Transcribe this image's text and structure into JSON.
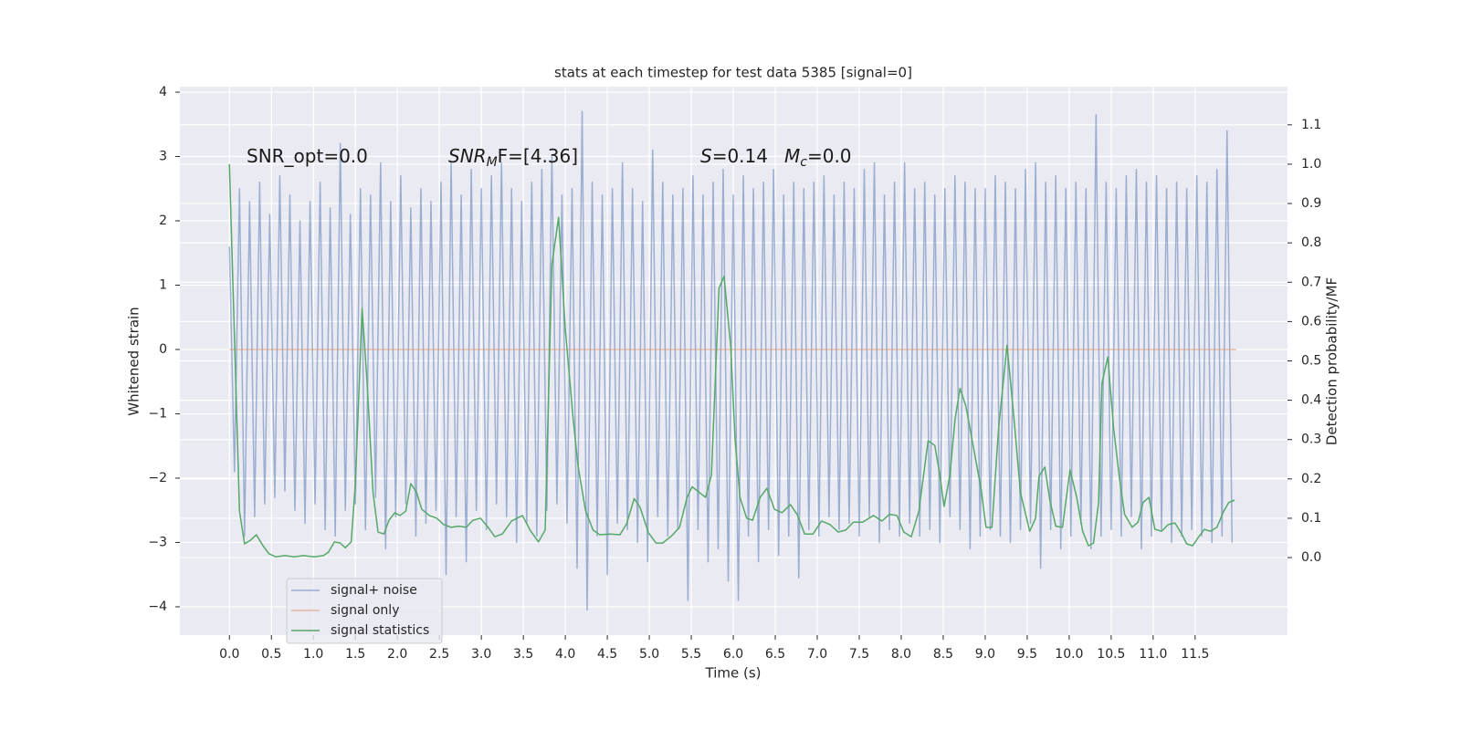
{
  "chart_data": {
    "type": "line",
    "title": "stats at each timestep for test data 5385 [signal=0]",
    "xlabel": "Time (s)",
    "ylabel": "Whitened strain",
    "y2label": "Detection probability/MF",
    "annotations": [
      {
        "text": "SNR_opt=0.0"
      },
      {
        "italic": "SNR",
        "sub": "M",
        "text": "F=[4.36]"
      },
      {
        "italic": "S",
        "text": "=0.14"
      },
      {
        "italic": "M",
        "sub": "c",
        "text": "=0.0"
      }
    ],
    "xlim": [
      -0.59,
      12.6
    ],
    "ylim": [
      -4.44,
      4.085
    ],
    "y2lim": [
      -0.197,
      1.197
    ],
    "xticks": [
      {
        "value": 0,
        "label": "0.0"
      },
      0.5,
      {
        "value": 1,
        "label": "1.0"
      },
      1.5,
      {
        "value": 2,
        "label": "2.0"
      },
      2.5,
      {
        "value": 3,
        "label": "3.0"
      },
      3.5,
      {
        "value": 4,
        "label": "4.0"
      },
      4.5,
      {
        "value": 5,
        "label": "5.0"
      },
      5.5,
      {
        "value": 6,
        "label": "6.0"
      },
      6.5,
      {
        "value": 7,
        "label": "7.0"
      },
      7.5,
      {
        "value": 8,
        "label": "8.0"
      },
      8.5,
      {
        "value": 9,
        "label": "9.0"
      },
      9.5,
      {
        "value": 10,
        "label": "10.0"
      },
      10.5,
      {
        "value": 11,
        "label": "11.0"
      },
      11.5
    ],
    "yticks": [
      {
        "value": -4,
        "label": "−4"
      },
      {
        "value": -3,
        "label": "−3"
      },
      {
        "value": -2,
        "label": "−2"
      },
      {
        "value": -1,
        "label": "−1"
      },
      0,
      1,
      2,
      3,
      4
    ],
    "y2ticks": [
      {
        "value": 0,
        "label": "0.0"
      },
      0.1,
      0.2,
      0.3,
      0.4,
      0.5,
      0.6,
      0.7,
      0.8,
      0.9,
      {
        "value": 1,
        "label": "1.0"
      },
      1.1
    ],
    "grid": true,
    "legend": "lower left",
    "series": [
      {
        "name": "signal+ noise",
        "color": "#4c72b0",
        "x": [
          0,
          0.06,
          0.12,
          0.18,
          0.24,
          0.3,
          0.36,
          0.42,
          0.48,
          0.54,
          0.6,
          0.66,
          0.72,
          0.78,
          0.84,
          0.9,
          0.96,
          1.02,
          1.08,
          1.14,
          1.2,
          1.26,
          1.32,
          1.38,
          1.44,
          1.5,
          1.56,
          1.62,
          1.68,
          1.74,
          1.8,
          1.86,
          1.92,
          1.98,
          2.04,
          2.1,
          2.16,
          2.22,
          2.28,
          2.34,
          2.4,
          2.46,
          2.52,
          2.58,
          2.64,
          2.7,
          2.76,
          2.82,
          2.88,
          2.94,
          3,
          3.06,
          3.12,
          3.18,
          3.24,
          3.3,
          3.36,
          3.42,
          3.48,
          3.54,
          3.6,
          3.66,
          3.72,
          3.78,
          3.84,
          3.9,
          3.96,
          4.02,
          4.08,
          4.14,
          4.2,
          4.26,
          4.32,
          4.38,
          4.44,
          4.5,
          4.56,
          4.62,
          4.68,
          4.74,
          4.8,
          4.86,
          4.92,
          4.98,
          5.04,
          5.1,
          5.16,
          5.22,
          5.28,
          5.34,
          5.4,
          5.46,
          5.52,
          5.58,
          5.64,
          5.7,
          5.76,
          5.82,
          5.88,
          5.94,
          6,
          6.06,
          6.12,
          6.18,
          6.24,
          6.3,
          6.36,
          6.42,
          6.48,
          6.54,
          6.6,
          6.66,
          6.72,
          6.78,
          6.84,
          6.9,
          6.96,
          7.02,
          7.08,
          7.14,
          7.2,
          7.26,
          7.32,
          7.38,
          7.44,
          7.5,
          7.56,
          7.62,
          7.68,
          7.74,
          7.8,
          7.86,
          7.92,
          7.98,
          8.04,
          8.1,
          8.16,
          8.22,
          8.28,
          8.34,
          8.4,
          8.46,
          8.52,
          8.58,
          8.64,
          8.7,
          8.76,
          8.82,
          8.88,
          8.94,
          9,
          9.06,
          9.12,
          9.18,
          9.24,
          9.3,
          9.36,
          9.42,
          9.48,
          9.54,
          9.6,
          9.66,
          9.72,
          9.78,
          9.84,
          9.9,
          9.96,
          10.02,
          10.08,
          10.14,
          10.2,
          10.26,
          10.32,
          10.38,
          10.44,
          10.5,
          10.56,
          10.62,
          10.68,
          10.74,
          10.8,
          10.86,
          10.92,
          10.98,
          11.04,
          11.1,
          11.16,
          11.22,
          11.28,
          11.34,
          11.4,
          11.46,
          11.52,
          11.58,
          11.64,
          11.7,
          11.76,
          11.82,
          11.88,
          11.94
        ],
        "values": [
          1.6,
          -1.9,
          2.5,
          -2.9,
          2.3,
          -2.6,
          2.6,
          -2.4,
          2.1,
          -2.3,
          2.7,
          -2.2,
          2.4,
          -2.5,
          2.0,
          -2.7,
          2.3,
          -2.4,
          2.6,
          -2.8,
          2.2,
          -2.9,
          3.2,
          -2.5,
          2.1,
          -2.4,
          2.5,
          -2.8,
          2.4,
          -2.3,
          2.9,
          -3.1,
          2.3,
          -2.6,
          2.7,
          -2.4,
          2.2,
          -2.9,
          2.5,
          -2.7,
          2.3,
          -2.5,
          2.6,
          -3.5,
          2.9,
          -2.6,
          2.4,
          -3.3,
          2.8,
          -2.5,
          2.5,
          -2.8,
          2.7,
          -2.4,
          2.9,
          -2.6,
          2.5,
          -3.0,
          2.3,
          -2.7,
          2.6,
          -2.9,
          2.8,
          -2.5,
          3.0,
          -2.4,
          2.4,
          -2.7,
          2.5,
          -3.4,
          3.7,
          -4.05,
          2.6,
          -2.9,
          2.4,
          -3.5,
          2.5,
          -2.7,
          2.9,
          -2.8,
          2.5,
          -3.0,
          2.3,
          -3.3,
          3.1,
          -2.6,
          2.6,
          -2.9,
          2.4,
          -2.8,
          2.5,
          -3.9,
          2.7,
          -2.8,
          2.4,
          -3.3,
          2.6,
          -3.1,
          2.8,
          -3.6,
          2.4,
          -3.9,
          2.7,
          -2.9,
          2.5,
          -3.3,
          2.6,
          -2.8,
          2.8,
          -3.2,
          2.4,
          -2.9,
          2.6,
          -3.55,
          2.5,
          -2.8,
          2.6,
          -2.9,
          2.7,
          -2.6,
          2.4,
          -2.8,
          2.6,
          -2.7,
          2.5,
          -2.9,
          2.8,
          -2.6,
          2.9,
          -3.0,
          2.4,
          -2.8,
          2.6,
          -2.9,
          2.9,
          -2.7,
          2.5,
          -2.9,
          2.6,
          -2.8,
          2.4,
          -3.0,
          2.5,
          -2.6,
          2.7,
          -2.8,
          2.6,
          -3.1,
          2.5,
          -2.9,
          2.5,
          -2.8,
          2.7,
          -2.9,
          2.6,
          -3.0,
          2.5,
          -2.8,
          2.8,
          -2.7,
          2.9,
          -3.4,
          2.6,
          -2.8,
          2.7,
          -3.1,
          2.5,
          -2.9,
          2.6,
          -2.7,
          2.5,
          -3.1,
          3.65,
          -2.9,
          2.6,
          -2.8,
          2.5,
          -2.9,
          2.7,
          -2.6,
          2.8,
          -3.1,
          2.6,
          -2.9,
          2.7,
          -2.8,
          2.5,
          -3.0,
          2.6,
          -2.9,
          2.5,
          -2.8,
          2.7,
          -2.9,
          2.6,
          -3.0,
          2.8,
          -2.9,
          3.4,
          -3.0
        ]
      },
      {
        "name": "signal only",
        "color": "#dd8452",
        "x": [
          0,
          11.99
        ],
        "values": [
          0,
          0
        ]
      },
      {
        "name": "signal statistics",
        "color": "#55a868",
        "axis": "y2",
        "x": [
          0,
          0.12,
          0.18,
          0.25,
          0.32,
          0.4,
          0.47,
          0.55,
          0.66,
          0.77,
          0.88,
          1.01,
          1.12,
          1.18,
          1.25,
          1.32,
          1.38,
          1.45,
          1.5,
          1.58,
          1.64,
          1.71,
          1.77,
          1.84,
          1.9,
          1.97,
          2.03,
          2.1,
          2.16,
          2.23,
          2.29,
          2.38,
          2.47,
          2.55,
          2.64,
          2.73,
          2.82,
          2.9,
          2.99,
          3.08,
          3.16,
          3.25,
          3.36,
          3.49,
          3.58,
          3.68,
          3.76,
          3.84,
          3.92,
          4.0,
          4.09,
          4.15,
          4.24,
          4.33,
          4.41,
          4.53,
          4.65,
          4.73,
          4.82,
          4.89,
          4.99,
          5.08,
          5.16,
          5.27,
          5.36,
          5.45,
          5.51,
          5.6,
          5.67,
          5.74,
          5.83,
          5.89,
          5.97,
          6.02,
          6.08,
          6.16,
          6.23,
          6.32,
          6.4,
          6.49,
          6.58,
          6.68,
          6.76,
          6.85,
          6.95,
          7.05,
          7.15,
          7.25,
          7.34,
          7.43,
          7.54,
          7.67,
          7.77,
          7.86,
          7.95,
          8.03,
          8.12,
          8.21,
          8.32,
          8.4,
          8.46,
          8.51,
          8.58,
          8.64,
          8.7,
          8.77,
          8.86,
          8.95,
          9.01,
          9.08,
          9.16,
          9.26,
          9.34,
          9.42,
          9.53,
          9.6,
          9.64,
          9.71,
          9.77,
          9.84,
          9.92,
          10.01,
          10.09,
          10.16,
          10.23,
          10.29,
          10.35,
          10.39,
          10.46,
          10.53,
          10.6,
          10.66,
          10.75,
          10.82,
          10.88,
          10.95,
          11.02,
          11.1,
          11.18,
          11.26,
          11.34,
          11.4,
          11.47,
          11.53,
          11.61,
          11.68,
          11.76,
          11.84,
          11.9,
          11.97
        ],
        "values": [
          1.0,
          0.118,
          0.035,
          0.044,
          0.058,
          0.03,
          0.01,
          0.002,
          0.005,
          0.002,
          0.005,
          0.002,
          0.005,
          0.014,
          0.04,
          0.037,
          0.025,
          0.04,
          0.188,
          0.633,
          0.443,
          0.165,
          0.065,
          0.06,
          0.095,
          0.114,
          0.107,
          0.118,
          0.188,
          0.165,
          0.123,
          0.107,
          0.1,
          0.084,
          0.077,
          0.08,
          0.077,
          0.095,
          0.1,
          0.077,
          0.053,
          0.06,
          0.093,
          0.107,
          0.07,
          0.04,
          0.07,
          0.745,
          0.865,
          0.58,
          0.36,
          0.235,
          0.12,
          0.07,
          0.058,
          0.06,
          0.058,
          0.086,
          0.15,
          0.128,
          0.063,
          0.037,
          0.037,
          0.056,
          0.077,
          0.153,
          0.18,
          0.165,
          0.153,
          0.21,
          0.685,
          0.715,
          0.536,
          0.304,
          0.153,
          0.1,
          0.095,
          0.153,
          0.176,
          0.123,
          0.114,
          0.135,
          0.11,
          0.06,
          0.06,
          0.093,
          0.084,
          0.065,
          0.07,
          0.09,
          0.09,
          0.107,
          0.093,
          0.11,
          0.107,
          0.065,
          0.053,
          0.118,
          0.297,
          0.285,
          0.21,
          0.13,
          0.21,
          0.35,
          0.43,
          0.385,
          0.28,
          0.176,
          0.077,
          0.077,
          0.33,
          0.54,
          0.36,
          0.165,
          0.067,
          0.1,
          0.206,
          0.23,
          0.146,
          0.08,
          0.077,
          0.223,
          0.153,
          0.067,
          0.03,
          0.037,
          0.14,
          0.443,
          0.51,
          0.327,
          0.2,
          0.11,
          0.077,
          0.09,
          0.14,
          0.153,
          0.072,
          0.067,
          0.084,
          0.088,
          0.06,
          0.035,
          0.03,
          0.049,
          0.072,
          0.067,
          0.077,
          0.118,
          0.14,
          0.146
        ]
      }
    ]
  }
}
